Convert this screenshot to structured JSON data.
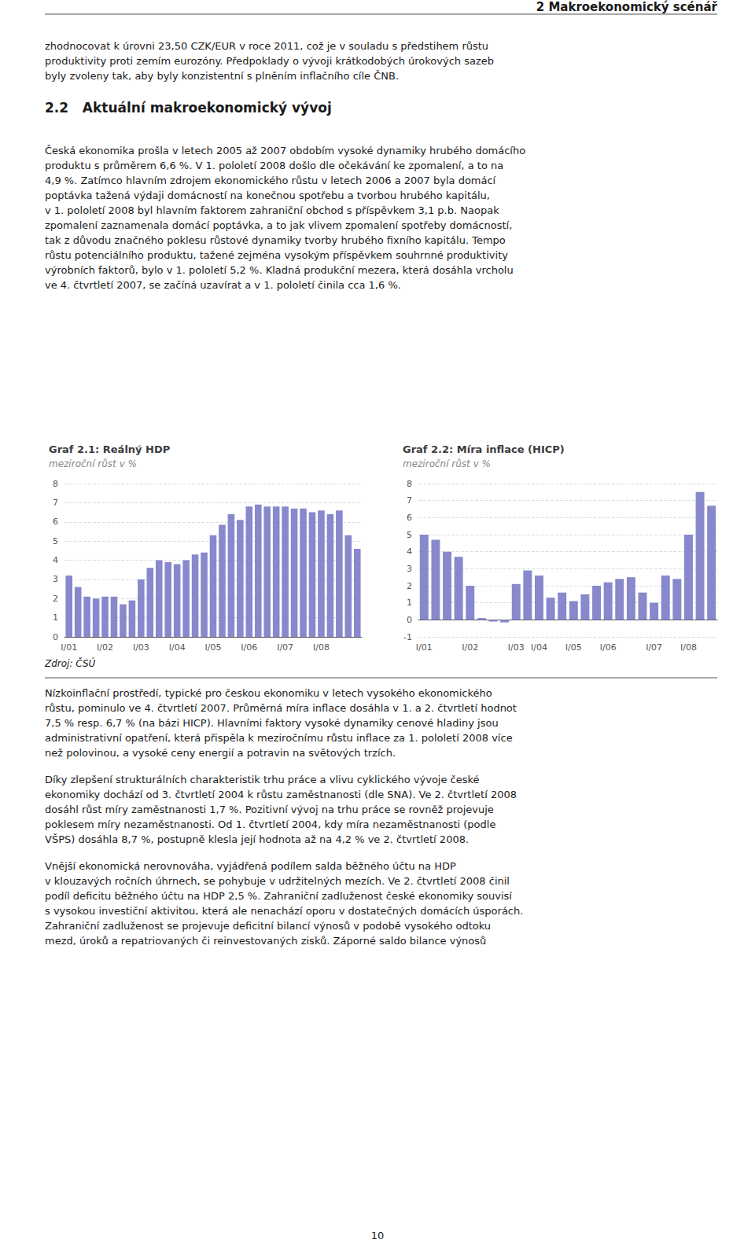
{
  "annotations": [
    [
      "2 Makroekonomický scénář"
    ],
    [
      "zhodnocovat k úrovni 23,50 CZK/EUR v roce 2011, což je v souladu s předstihem růstu",
      "produktivity proti zemím eurozóny. Předpoklady o vývoji krátkodobých úrokových sazeb",
      "byly zvoleny tak, aby byly konzistentní s plněním inflačního cíle ČNB."
    ],
    [
      "2.2   Aktuální makroekonomický vývoj"
    ],
    [
      "Česká ekonomika prošla v letech 2005 až 2007 obdobím vysoké dynamiky hrubého domácího",
      "produktu s průměrem 6,6 %. V 1. pololetí 2008 došlo dle očekávání ke zpomalení, a to na",
      "4,9 %. Zatímco hlavním zdrojem ekonomického růstu v letech 2006 a 2007 byla domácí",
      "poptávka tažená výdaji domácností na konečnou spotřebu a tvorbou hrubého kapitálu,",
      "v 1. pololetí 2008 byl hlavním faktorem zahraniční obchod s příspěvkem 3,1 p.b. Naopak",
      "zpomalení zaznamenala domácí poptávka, a to jak vlivem zpomalení spotřeby domácností,",
      "tak z důvodu značného poklesu růstové dynamiky tvorby hrubého fixního kapitálu. Tempo",
      "růstu potenciálního produktu, tažené zejména vysokým příspěvkem souhrnné produktivity",
      "výrobních faktorů, bylo v 1. pololetí 5,2 %. Kladná produkční mezera, která dosáhla vrcholu",
      "ve 4. čtvrtletí 2007, se začíná uzavírat a v 1. pololetí činila cca 1,6 %."
    ],
    [
      "Zdroj: ČSÚ"
    ],
    [
      "Nízkoinflační prostředí, typické pro českou ekonomiku v letech vysokého ekonomického",
      "růstu, pominulo ve 4. čtvrtletí 2007. Průměrná míra inflace dosáhla v 1. a 2. čtvrtletí hodnot",
      "7,5 % resp. 6,7 % (na bázi HICP). Hlavními faktory vysoké dynamiky cenové hladiny jsou",
      "administrativní opatření, která přispěla k meziročnímu růstu inflace za 1. pololetí 2008 více",
      "než polovinou, a vysoké ceny energií a potravin na světových trzích."
    ],
    [
      "Díky zlepšení strukturálních charakteristik trhu práce a vlivu cyklického vývoje české",
      "ekonomiky dochází od 3. čtvrtletí 2004 k růstu zaměstnanosti (dle SNA). Ve 2. čtvrtletí 2008",
      "dosáhl růst míry zaměstnanosti 1,7 %. Pozitivní vývoj na trhu práce se rovněž projevuje",
      "poklesem míry nezaměstnanosti. Od 1. čtvrtletí 2004, kdy míra nezaměstnanosti (podle",
      "VŠPS) dosáhla 8,7 %, postupně klesla její hodnota až na 4,2 % ve 2. čtvrtletí 2008."
    ],
    [
      "Vnější ekonomická nerovnováha, vyjádřená podílem salda běžného účtu na HDP",
      "v klouzavých ročních úhrnech, se pohybuje v udržitelných mezích. Ve 2. čtvrtletí 2008 činil",
      "podíl deficitu běžného účtu na HDP 2,5 %. Zahraniční zadluženost české ekonomiky souvisí",
      "s vysokou investiční aktivitou, která ale nenachází oporu v dostatečných domácích úsporách.",
      "Zahraniční zadluženost se projevuje deficitní bilancí výnosů v podobě vysokého odtoku",
      "mezd, úroků a repatriovaných či reinvestovaných zisků. Záporné saldo bilance výnosů"
    ],
    [
      "10"
    ]
  ],
  "chart_data": [
    {
      "type": "bar",
      "title": "Graf 2.1: Reálný HDP",
      "subtitle": "meziroční růst v %",
      "categories": [
        "I/01",
        null,
        null,
        null,
        "I/02",
        null,
        null,
        null,
        "I/03",
        null,
        null,
        null,
        "I/04",
        null,
        null,
        null,
        "I/05",
        null,
        null,
        null,
        "I/06",
        null,
        null,
        null,
        "I/07",
        null,
        null,
        null,
        "I/08",
        null,
        null,
        null,
        null
      ],
      "values": [
        3.2,
        2.6,
        2.1,
        2.0,
        2.1,
        2.1,
        1.7,
        1.9,
        3.0,
        3.6,
        4.0,
        3.9,
        3.8,
        4.0,
        4.3,
        4.4,
        5.3,
        5.85,
        6.4,
        6.1,
        6.8,
        6.9,
        6.8,
        6.8,
        6.8,
        6.7,
        6.7,
        6.5,
        6.6,
        6.4,
        6.6,
        5.3,
        4.6
      ],
      "color": "#8888cc",
      "ylim": [
        0,
        8
      ],
      "yticks": [
        0,
        1,
        2,
        3,
        4,
        5,
        6,
        7,
        8
      ],
      "grid": true
    },
    {
      "type": "bar",
      "title": "Graf 2.2: Míra inflace (HICP)",
      "subtitle": "meziroční růst v %",
      "categories": [
        "I/01",
        null,
        null,
        null,
        "I/02",
        null,
        null,
        null,
        "I/03",
        null,
        "I/04",
        null,
        null,
        "I/05",
        null,
        null,
        "I/06",
        null,
        null,
        null,
        "I/07",
        null,
        null,
        "I/08",
        null,
        null
      ],
      "values": [
        5.0,
        4.7,
        4.0,
        3.7,
        2.0,
        0.1,
        -0.1,
        -0.15,
        2.1,
        2.9,
        2.6,
        1.3,
        1.6,
        1.1,
        1.5,
        2.0,
        2.2,
        2.4,
        2.5,
        1.6,
        1.0,
        2.6,
        2.4,
        5.0,
        7.5,
        6.7
      ],
      "color": "#8888cc",
      "ylim": [
        -1,
        8
      ],
      "yticks": [
        -1,
        0,
        1,
        2,
        3,
        4,
        5,
        6,
        7,
        8
      ],
      "grid": true
    }
  ]
}
